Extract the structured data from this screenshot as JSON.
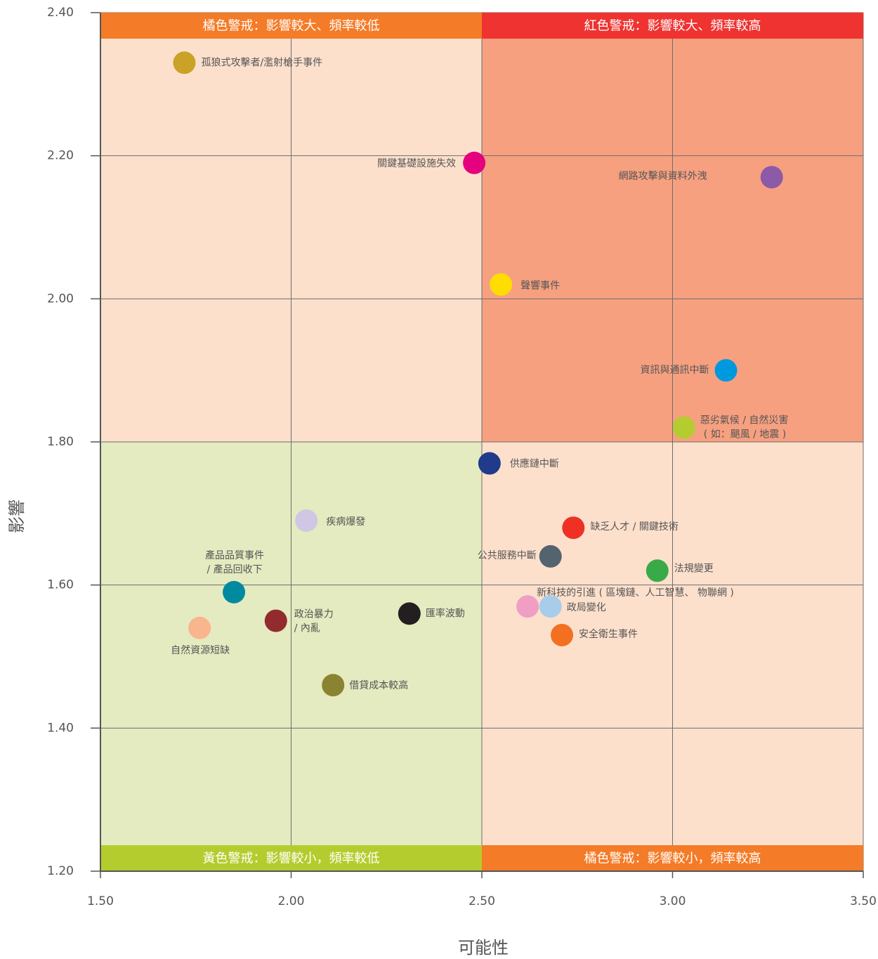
{
  "chart_data": {
    "type": "scatter",
    "xlabel": "可能性",
    "ylabel": "影響",
    "xlim": [
      1.5,
      3.5
    ],
    "ylim": [
      1.2,
      2.4
    ],
    "xticks": [
      {
        "value": 1.5,
        "label": "1.50"
      },
      {
        "value": 2,
        "label": "2.00"
      },
      {
        "value": 2.5,
        "label": "2.50"
      },
      {
        "value": 3,
        "label": "3.00"
      },
      {
        "value": 3.5,
        "label": "3.50"
      }
    ],
    "yticks": [
      {
        "value": 1.2,
        "label": "1.20"
      },
      {
        "value": 1.4,
        "label": "1.40"
      },
      {
        "value": 1.6,
        "label": "1.60"
      },
      {
        "value": 1.8,
        "label": "1.80"
      },
      {
        "value": 2,
        "label": "2.00"
      },
      {
        "value": 2.2,
        "label": "2.20"
      },
      {
        "value": 2.4,
        "label": "2.40"
      }
    ],
    "grid": true,
    "xsplit": 2.5,
    "ysplit": 1.8,
    "quadrants": [
      {
        "corner": "top-left",
        "label": "橘色警戒：影響較大、頻率較低",
        "color": "#fde0cc",
        "banner_color": "#f47b27"
      },
      {
        "corner": "top-right",
        "label": "紅色警戒：影響較大、頻率較高",
        "color": "#f6a080",
        "banner_color": "#ee3330"
      },
      {
        "corner": "bottom-left",
        "label": "黃色警戒：影響較小，頻率較低",
        "color": "#e4ebc0",
        "banner_color": "#b5cc2e"
      },
      {
        "corner": "bottom-right",
        "label": "橘色警戒：影響較小，頻率較高",
        "color": "#fde0cc",
        "banner_color": "#f47b27"
      }
    ],
    "points": [
      {
        "label": [
          "孤狼式攻擊者/濫射槍手事件"
        ],
        "x": 1.72,
        "y": 2.33,
        "color": "#c9a227"
      },
      {
        "label": [
          "關鍵基礎設施失效"
        ],
        "x": 2.48,
        "y": 2.19,
        "color": "#e5007e"
      },
      {
        "label": [
          "網路攻擊與資料外洩"
        ],
        "x": 3.26,
        "y": 2.17,
        "color": "#8c5aa6"
      },
      {
        "label": [
          "聲響事件"
        ],
        "x": 2.55,
        "y": 2.02,
        "color": "#ffdd00"
      },
      {
        "label": [
          "資訊與通訊中斷"
        ],
        "x": 3.14,
        "y": 1.9,
        "color": "#0099dd"
      },
      {
        "label": [
          "惡劣氣候 / 自然災害",
          "( 如：颶風 / 地震 )"
        ],
        "x": 3.03,
        "y": 1.82,
        "color": "#b5cc2e"
      },
      {
        "label": [
          "供應鏈中斷"
        ],
        "x": 2.52,
        "y": 1.77,
        "color": "#203a8c"
      },
      {
        "label": [
          "疾病爆發"
        ],
        "x": 2.04,
        "y": 1.69,
        "color": "#cfc7e3"
      },
      {
        "label": [
          "缺乏人才 / 關鍵技術"
        ],
        "x": 2.74,
        "y": 1.68,
        "color": "#ee3124"
      },
      {
        "label": [
          "公共服務中斷"
        ],
        "x": 2.68,
        "y": 1.64,
        "color": "#53646f"
      },
      {
        "label": [
          "法規變更"
        ],
        "x": 2.96,
        "y": 1.62,
        "color": "#3aaa49"
      },
      {
        "label": [
          "產品品質事件",
          "/ 產品回收下"
        ],
        "x": 1.85,
        "y": 1.59,
        "color": "#008aa0"
      },
      {
        "label": [
          "新科技的引進 ( 區塊鏈、人工智慧、 物聯網 )"
        ],
        "x": 2.62,
        "y": 1.57,
        "color": "#f19ec4"
      },
      {
        "label": [
          "政局變化"
        ],
        "x": 2.68,
        "y": 1.57,
        "color": "#a8cdea"
      },
      {
        "label": [
          "匯率波動"
        ],
        "x": 2.31,
        "y": 1.56,
        "color": "#231f20"
      },
      {
        "label": [
          "政治暴力",
          "/ 內亂"
        ],
        "x": 1.96,
        "y": 1.55,
        "color": "#912b2e"
      },
      {
        "label": [
          "自然資源短缺"
        ],
        "x": 1.76,
        "y": 1.54,
        "color": "#f9b58e"
      },
      {
        "label": [
          "安全衛生事件"
        ],
        "x": 2.71,
        "y": 1.53,
        "color": "#f37021"
      },
      {
        "label": [
          "借貸成本較高"
        ],
        "x": 2.11,
        "y": 1.46,
        "color": "#8a8332"
      }
    ]
  }
}
